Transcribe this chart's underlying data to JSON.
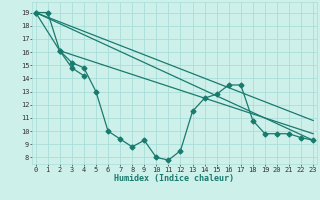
{
  "xlabel": "Humidex (Indice chaleur)",
  "bg_color": "#cef0eb",
  "grid_color": "#aaddd8",
  "line_color": "#1a7a6e",
  "x_values": [
    0,
    1,
    2,
    3,
    4,
    5,
    6,
    7,
    8,
    9,
    10,
    11,
    12,
    13,
    14,
    15,
    16,
    17,
    18,
    19,
    20,
    21,
    22,
    23
  ],
  "main_series": [
    19.0,
    null,
    16.1,
    15.2,
    14.8,
    13.0,
    10.0,
    9.4,
    8.8,
    9.3,
    8.0,
    7.8,
    8.5,
    11.5,
    12.5,
    12.8,
    13.5,
    13.5,
    10.8,
    9.8,
    9.8,
    9.8,
    9.5,
    9.3
  ],
  "short_series": [
    19.0,
    19.0,
    16.1,
    14.8,
    14.2,
    null,
    null,
    null,
    null,
    null,
    null,
    null,
    null,
    null,
    null,
    null,
    null,
    null,
    null,
    null,
    null,
    null,
    null,
    null
  ],
  "straight_lines": [
    {
      "x": [
        0,
        23
      ],
      "y": [
        19.0,
        9.3
      ]
    },
    {
      "x": [
        0,
        23
      ],
      "y": [
        19.0,
        10.8
      ]
    },
    {
      "x": [
        2,
        23
      ],
      "y": [
        16.1,
        9.8
      ]
    }
  ],
  "ylim": [
    7.5,
    19.8
  ],
  "xlim": [
    -0.3,
    23.3
  ],
  "yticks": [
    8,
    9,
    10,
    11,
    12,
    13,
    14,
    15,
    16,
    17,
    18,
    19
  ],
  "xticks": [
    0,
    1,
    2,
    3,
    4,
    5,
    6,
    7,
    8,
    9,
    10,
    11,
    12,
    13,
    14,
    15,
    16,
    17,
    18,
    19,
    20,
    21,
    22,
    23
  ],
  "tick_fontsize": 5.0,
  "xlabel_fontsize": 6.0
}
